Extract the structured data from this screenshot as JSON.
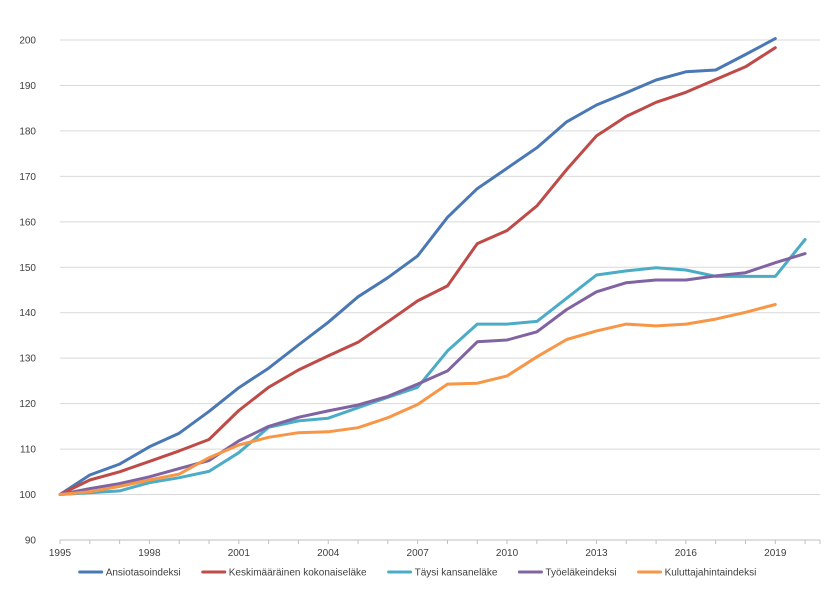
{
  "chart_data": {
    "type": "line",
    "title": "",
    "xlabel": "",
    "ylabel": "",
    "x": [
      1995,
      1996,
      1997,
      1998,
      1999,
      2000,
      2001,
      2002,
      2003,
      2004,
      2005,
      2006,
      2007,
      2008,
      2009,
      2010,
      2011,
      2012,
      2013,
      2014,
      2015,
      2016,
      2017,
      2018,
      2019,
      2020
    ],
    "xlim": [
      1995,
      2020.5
    ],
    "xticks": [
      1995,
      1998,
      2001,
      2004,
      2007,
      2010,
      2013,
      2016,
      2019
    ],
    "ylim": [
      90,
      200
    ],
    "yticks": [
      90,
      100,
      110,
      120,
      130,
      140,
      150,
      160,
      170,
      180,
      190,
      200
    ],
    "grid": true,
    "legend_position": "bottom",
    "series": [
      {
        "name": "Ansiotasoindeksi",
        "color": "#4a78b5",
        "values": [
          100,
          104.3,
          106.7,
          110.5,
          113.5,
          118.3,
          123.5,
          127.8,
          132.9,
          137.9,
          143.5,
          147.7,
          152.5,
          161.0,
          167.3,
          171.8,
          176.3,
          182.0,
          185.7,
          188.4,
          191.2,
          193.0,
          193.4,
          196.8,
          200.3,
          null
        ]
      },
      {
        "name": "Keskimääräinen kokonaiseläke",
        "color": "#be4b48",
        "values": [
          100,
          103.2,
          105.0,
          107.3,
          109.6,
          112.1,
          118.5,
          123.6,
          127.4,
          130.5,
          133.5,
          138.0,
          142.6,
          145.9,
          155.2,
          158.1,
          163.5,
          171.5,
          178.9,
          183.2,
          186.3,
          188.5,
          191.3,
          194.1,
          198.3,
          null
        ]
      },
      {
        "name": "Täysi kansaneläke",
        "color": "#4bacc6",
        "values": [
          100,
          100.4,
          100.8,
          102.6,
          103.7,
          105.1,
          109.2,
          114.8,
          116.2,
          116.8,
          119.1,
          121.4,
          123.6,
          131.6,
          137.5,
          137.5,
          138.1,
          143.2,
          148.3,
          149.2,
          149.9,
          149.4,
          148.0,
          148.0,
          148.0,
          156.1
        ]
      },
      {
        "name": "Työeläkeindeksi",
        "color": "#8064a2",
        "values": [
          100,
          101.3,
          102.4,
          103.9,
          105.7,
          107.5,
          111.8,
          115.0,
          117.0,
          118.4,
          119.7,
          121.6,
          124.3,
          127.2,
          133.6,
          134.0,
          135.8,
          140.7,
          144.6,
          146.6,
          147.2,
          147.2,
          148.1,
          148.8,
          151.0,
          153.0
        ]
      },
      {
        "name": "Kuluttajahintaindeksi",
        "color": "#f79646",
        "values": [
          100,
          100.6,
          101.8,
          103.2,
          104.5,
          108.1,
          110.9,
          112.6,
          113.6,
          113.8,
          114.7,
          116.9,
          119.8,
          124.3,
          124.5,
          126.1,
          130.3,
          134.1,
          136.0,
          137.5,
          137.1,
          137.5,
          138.6,
          140.1,
          141.8,
          null
        ]
      }
    ]
  }
}
